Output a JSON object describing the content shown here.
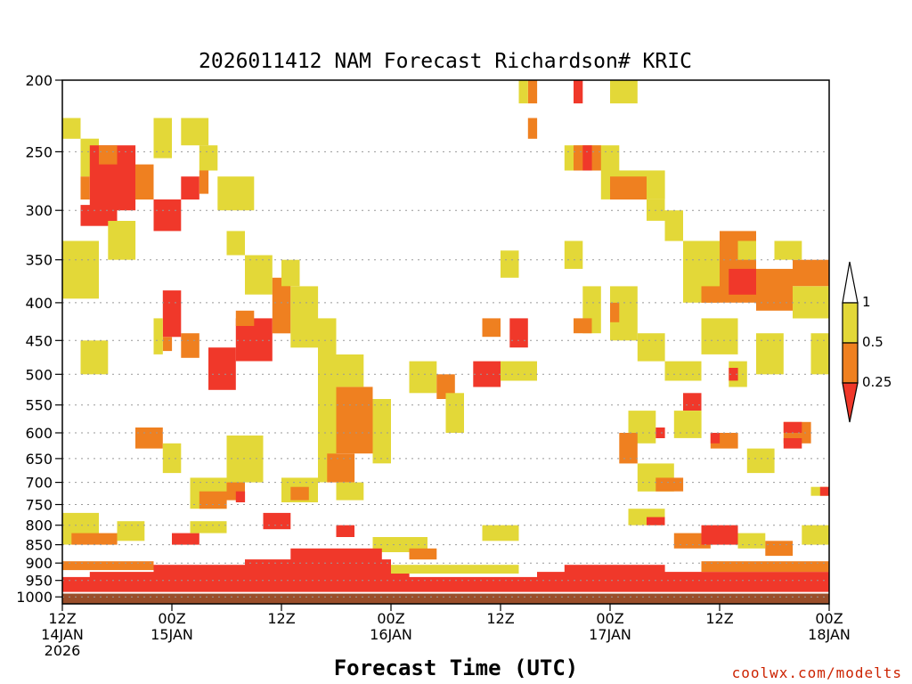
{
  "chart_data": {
    "type": "heatmap",
    "title": "2026011412 NAM Forecast Richardson# KRIC",
    "xlabel": "Forecast Time (UTC)",
    "ylabel": "",
    "credit": "coolwx.com/modelts",
    "x_range_hours": [
      0,
      84
    ],
    "y_range_hpa": [
      200,
      1000
    ],
    "y_ticks": [
      "200",
      "250",
      "300",
      "350",
      "400",
      "450",
      "500",
      "550",
      "600",
      "650",
      "700",
      "750",
      "800",
      "850",
      "900",
      "950",
      "1000"
    ],
    "x_ticks": [
      {
        "line1": "12Z",
        "line2": "14JAN",
        "line3": "2026",
        "hour": 0
      },
      {
        "line1": "00Z",
        "line2": "15JAN",
        "line3": "",
        "hour": 12
      },
      {
        "line1": "12Z",
        "line2": "",
        "line3": "",
        "hour": 24
      },
      {
        "line1": "00Z",
        "line2": "16JAN",
        "line3": "",
        "hour": 36
      },
      {
        "line1": "12Z",
        "line2": "",
        "line3": "",
        "hour": 48
      },
      {
        "line1": "00Z",
        "line2": "17JAN",
        "line3": "",
        "hour": 60
      },
      {
        "line1": "12Z",
        "line2": "",
        "line3": "",
        "hour": 72
      },
      {
        "line1": "00Z",
        "line2": "18JAN",
        "line3": "",
        "hour": 84
      }
    ],
    "legend": {
      "levels": [
        "1",
        "0.5",
        "0.25"
      ],
      "bins": [
        {
          "label": ">1",
          "color": "#ffffff"
        },
        {
          "label": "0.5-1",
          "color": "#e3d838"
        },
        {
          "label": "0.25-0.5",
          "color": "#ef8020"
        },
        {
          "label": "<0.25",
          "color": "#f0382a"
        }
      ]
    },
    "colors": {
      "yellow": "#e3d838",
      "orange": "#ef8020",
      "red": "#f0382a",
      "ground": "#9a4e2a",
      "grid": "#999999"
    },
    "cells": [
      {
        "h0": 0,
        "h1": 2,
        "p0": 225,
        "p1": 240,
        "bin": "0.5-1"
      },
      {
        "h0": 2,
        "h1": 4,
        "p0": 240,
        "p1": 270,
        "bin": "0.5-1"
      },
      {
        "h0": 2,
        "h1": 3,
        "p0": 270,
        "p1": 290,
        "bin": "0.25-0.5"
      },
      {
        "h0": 3,
        "h1": 8,
        "p0": 245,
        "p1": 300,
        "bin": "<0.25"
      },
      {
        "h0": 4,
        "h1": 6,
        "p0": 245,
        "p1": 260,
        "bin": "0.25-0.5"
      },
      {
        "h0": 2,
        "h1": 6,
        "p0": 295,
        "p1": 315,
        "bin": "<0.25"
      },
      {
        "h0": 8,
        "h1": 10,
        "p0": 260,
        "p1": 290,
        "bin": "0.25-0.5"
      },
      {
        "h0": 10,
        "h1": 13,
        "p0": 290,
        "p1": 320,
        "bin": "<0.25"
      },
      {
        "h0": 10,
        "h1": 12,
        "p0": 225,
        "p1": 255,
        "bin": "0.5-1"
      },
      {
        "h0": 13,
        "h1": 16,
        "p0": 225,
        "p1": 245,
        "bin": "0.5-1"
      },
      {
        "h0": 13,
        "h1": 15,
        "p0": 270,
        "p1": 290,
        "bin": "<0.25"
      },
      {
        "h0": 15,
        "h1": 17,
        "p0": 245,
        "p1": 265,
        "bin": "0.5-1"
      },
      {
        "h0": 15,
        "h1": 16,
        "p0": 265,
        "p1": 285,
        "bin": "0.25-0.5"
      },
      {
        "h0": 0,
        "h1": 4,
        "p0": 330,
        "p1": 395,
        "bin": "0.5-1"
      },
      {
        "h0": 5,
        "h1": 8,
        "p0": 310,
        "p1": 350,
        "bin": "0.5-1"
      },
      {
        "h0": 17,
        "h1": 21,
        "p0": 270,
        "p1": 300,
        "bin": "0.5-1"
      },
      {
        "h0": 18,
        "h1": 20,
        "p0": 320,
        "p1": 345,
        "bin": "0.5-1"
      },
      {
        "h0": 20,
        "h1": 23,
        "p0": 345,
        "p1": 390,
        "bin": "0.5-1"
      },
      {
        "h0": 11,
        "h1": 13,
        "p0": 385,
        "p1": 445,
        "bin": "<0.25"
      },
      {
        "h0": 11,
        "h1": 12,
        "p0": 445,
        "p1": 465,
        "bin": "0.25-0.5"
      },
      {
        "h0": 13,
        "h1": 15,
        "p0": 440,
        "p1": 475,
        "bin": "0.25-0.5"
      },
      {
        "h0": 10,
        "h1": 11,
        "p0": 420,
        "p1": 470,
        "bin": "0.5-1"
      },
      {
        "h0": 16,
        "h1": 19,
        "p0": 460,
        "p1": 525,
        "bin": "<0.25"
      },
      {
        "h0": 19,
        "h1": 23,
        "p0": 420,
        "p1": 480,
        "bin": "<0.25"
      },
      {
        "h0": 19,
        "h1": 21,
        "p0": 410,
        "p1": 430,
        "bin": "0.25-0.5"
      },
      {
        "h0": 23,
        "h1": 25,
        "p0": 370,
        "p1": 440,
        "bin": "0.25-0.5"
      },
      {
        "h0": 24,
        "h1": 26,
        "p0": 350,
        "p1": 380,
        "bin": "0.5-1"
      },
      {
        "h0": 25,
        "h1": 28,
        "p0": 380,
        "p1": 460,
        "bin": "0.5-1"
      },
      {
        "h0": 28,
        "h1": 30,
        "p0": 420,
        "p1": 700,
        "bin": "0.5-1"
      },
      {
        "h0": 30,
        "h1": 34,
        "p0": 520,
        "p1": 640,
        "bin": "0.25-0.5"
      },
      {
        "h0": 29,
        "h1": 32,
        "p0": 640,
        "p1": 700,
        "bin": "0.25-0.5"
      },
      {
        "h0": 34,
        "h1": 36,
        "p0": 540,
        "p1": 660,
        "bin": "0.5-1"
      },
      {
        "h0": 30,
        "h1": 33,
        "p0": 470,
        "p1": 520,
        "bin": "0.5-1"
      },
      {
        "h0": 2,
        "h1": 5,
        "p0": 450,
        "p1": 500,
        "bin": "0.5-1"
      },
      {
        "h0": 8,
        "h1": 11,
        "p0": 590,
        "p1": 630,
        "bin": "0.25-0.5"
      },
      {
        "h0": 11,
        "h1": 13,
        "p0": 620,
        "p1": 680,
        "bin": "0.5-1"
      },
      {
        "h0": 14,
        "h1": 18,
        "p0": 690,
        "p1": 760,
        "bin": "0.5-1"
      },
      {
        "h0": 15,
        "h1": 18,
        "p0": 720,
        "p1": 760,
        "bin": "0.25-0.5"
      },
      {
        "h0": 18,
        "h1": 20,
        "p0": 690,
        "p1": 740,
        "bin": "0.25-0.5"
      },
      {
        "h0": 19,
        "h1": 20,
        "p0": 720,
        "p1": 745,
        "bin": "<0.25"
      },
      {
        "h0": 18,
        "h1": 22,
        "p0": 605,
        "p1": 700,
        "bin": "0.5-1"
      },
      {
        "h0": 24,
        "h1": 28,
        "p0": 690,
        "p1": 745,
        "bin": "0.5-1"
      },
      {
        "h0": 25,
        "h1": 27,
        "p0": 710,
        "p1": 740,
        "bin": "0.25-0.5"
      },
      {
        "h0": 30,
        "h1": 33,
        "p0": 700,
        "p1": 740,
        "bin": "0.5-1"
      },
      {
        "h0": 38,
        "h1": 41,
        "p0": 480,
        "p1": 530,
        "bin": "0.5-1"
      },
      {
        "h0": 41,
        "h1": 43,
        "p0": 500,
        "p1": 540,
        "bin": "0.25-0.5"
      },
      {
        "h0": 42,
        "h1": 44,
        "p0": 530,
        "p1": 600,
        "bin": "0.5-1"
      },
      {
        "h0": 45,
        "h1": 48,
        "p0": 480,
        "p1": 520,
        "bin": "<0.25"
      },
      {
        "h0": 48,
        "h1": 52,
        "p0": 480,
        "p1": 510,
        "bin": "0.5-1"
      },
      {
        "h0": 49,
        "h1": 51,
        "p0": 420,
        "p1": 460,
        "bin": "<0.25"
      },
      {
        "h0": 46,
        "h1": 48,
        "p0": 420,
        "p1": 445,
        "bin": "0.25-0.5"
      },
      {
        "h0": 48,
        "h1": 50,
        "p0": 340,
        "p1": 370,
        "bin": "0.5-1"
      },
      {
        "h0": 51,
        "h1": 52,
        "p0": 200,
        "p1": 215,
        "bin": "0.25-0.5"
      },
      {
        "h0": 50,
        "h1": 51,
        "p0": 200,
        "p1": 215,
        "bin": "0.5-1"
      },
      {
        "h0": 51,
        "h1": 52,
        "p0": 225,
        "p1": 240,
        "bin": "0.25-0.5"
      },
      {
        "h0": 56,
        "h1": 57,
        "p0": 200,
        "p1": 215,
        "bin": "<0.25"
      },
      {
        "h0": 60,
        "h1": 63,
        "p0": 200,
        "p1": 215,
        "bin": "0.5-1"
      },
      {
        "h0": 55,
        "h1": 61,
        "p0": 245,
        "p1": 265,
        "bin": "0.5-1"
      },
      {
        "h0": 56,
        "h1": 59,
        "p0": 245,
        "p1": 265,
        "bin": "0.25-0.5"
      },
      {
        "h0": 57,
        "h1": 58,
        "p0": 245,
        "p1": 265,
        "bin": "<0.25"
      },
      {
        "h0": 59,
        "h1": 66,
        "p0": 265,
        "p1": 290,
        "bin": "0.5-1"
      },
      {
        "h0": 60,
        "h1": 64,
        "p0": 270,
        "p1": 290,
        "bin": "0.25-0.5"
      },
      {
        "h0": 64,
        "h1": 66,
        "p0": 290,
        "p1": 310,
        "bin": "0.5-1"
      },
      {
        "h0": 66,
        "h1": 68,
        "p0": 300,
        "p1": 330,
        "bin": "0.5-1"
      },
      {
        "h0": 55,
        "h1": 57,
        "p0": 330,
        "p1": 360,
        "bin": "0.5-1"
      },
      {
        "h0": 57,
        "h1": 59,
        "p0": 380,
        "p1": 440,
        "bin": "0.5-1"
      },
      {
        "h0": 56,
        "h1": 58,
        "p0": 420,
        "p1": 440,
        "bin": "0.25-0.5"
      },
      {
        "h0": 60,
        "h1": 63,
        "p0": 380,
        "p1": 450,
        "bin": "0.5-1"
      },
      {
        "h0": 60,
        "h1": 61,
        "p0": 400,
        "p1": 425,
        "bin": "0.25-0.5"
      },
      {
        "h0": 63,
        "h1": 66,
        "p0": 440,
        "p1": 480,
        "bin": "0.5-1"
      },
      {
        "h0": 66,
        "h1": 70,
        "p0": 480,
        "p1": 510,
        "bin": "0.5-1"
      },
      {
        "h0": 70,
        "h1": 74,
        "p0": 420,
        "p1": 470,
        "bin": "0.5-1"
      },
      {
        "h0": 68,
        "h1": 72,
        "p0": 330,
        "p1": 400,
        "bin": "0.5-1"
      },
      {
        "h0": 70,
        "h1": 72,
        "p0": 380,
        "p1": 400,
        "bin": "0.25-0.5"
      },
      {
        "h0": 72,
        "h1": 76,
        "p0": 320,
        "p1": 400,
        "bin": "0.25-0.5"
      },
      {
        "h0": 73,
        "h1": 76,
        "p0": 360,
        "p1": 390,
        "bin": "<0.25"
      },
      {
        "h0": 74,
        "h1": 76,
        "p0": 330,
        "p1": 350,
        "bin": "0.5-1"
      },
      {
        "h0": 76,
        "h1": 80,
        "p0": 360,
        "p1": 410,
        "bin": "0.25-0.5"
      },
      {
        "h0": 80,
        "h1": 84,
        "p0": 350,
        "p1": 380,
        "bin": "0.25-0.5"
      },
      {
        "h0": 78,
        "h1": 81,
        "p0": 330,
        "p1": 350,
        "bin": "0.5-1"
      },
      {
        "h0": 80,
        "h1": 84,
        "p0": 380,
        "p1": 420,
        "bin": "0.5-1"
      },
      {
        "h0": 82,
        "h1": 84,
        "p0": 440,
        "p1": 500,
        "bin": "0.5-1"
      },
      {
        "h0": 76,
        "h1": 79,
        "p0": 440,
        "p1": 500,
        "bin": "0.5-1"
      },
      {
        "h0": 73,
        "h1": 75,
        "p0": 480,
        "p1": 520,
        "bin": "0.5-1"
      },
      {
        "h0": 73,
        "h1": 74,
        "p0": 490,
        "p1": 510,
        "bin": "<0.25"
      },
      {
        "h0": 68,
        "h1": 70,
        "p0": 530,
        "p1": 560,
        "bin": "<0.25"
      },
      {
        "h0": 67,
        "h1": 70,
        "p0": 560,
        "p1": 610,
        "bin": "0.5-1"
      },
      {
        "h0": 62,
        "h1": 65,
        "p0": 560,
        "p1": 620,
        "bin": "0.5-1"
      },
      {
        "h0": 61,
        "h1": 63,
        "p0": 600,
        "p1": 660,
        "bin": "0.25-0.5"
      },
      {
        "h0": 63,
        "h1": 67,
        "p0": 660,
        "p1": 720,
        "bin": "0.5-1"
      },
      {
        "h0": 65,
        "h1": 68,
        "p0": 690,
        "p1": 720,
        "bin": "0.25-0.5"
      },
      {
        "h0": 65,
        "h1": 66,
        "p0": 590,
        "p1": 610,
        "bin": "<0.25"
      },
      {
        "h0": 71,
        "h1": 74,
        "p0": 600,
        "p1": 630,
        "bin": "0.25-0.5"
      },
      {
        "h0": 71,
        "h1": 72,
        "p0": 600,
        "p1": 620,
        "bin": "<0.25"
      },
      {
        "h0": 75,
        "h1": 78,
        "p0": 630,
        "p1": 680,
        "bin": "0.5-1"
      },
      {
        "h0": 79,
        "h1": 82,
        "p0": 580,
        "p1": 620,
        "bin": "0.25-0.5"
      },
      {
        "h0": 79,
        "h1": 81,
        "p0": 580,
        "p1": 600,
        "bin": "<0.25"
      },
      {
        "h0": 79,
        "h1": 81,
        "p0": 610,
        "p1": 630,
        "bin": "<0.25"
      },
      {
        "h0": 82,
        "h1": 84,
        "p0": 710,
        "p1": 730,
        "bin": "0.5-1"
      },
      {
        "h0": 83,
        "h1": 84,
        "p0": 710,
        "p1": 730,
        "bin": "<0.25"
      },
      {
        "h0": 0,
        "h1": 4,
        "p0": 770,
        "p1": 850,
        "bin": "0.5-1"
      },
      {
        "h0": 1,
        "h1": 6,
        "p0": 820,
        "p1": 850,
        "bin": "0.25-0.5"
      },
      {
        "h0": 6,
        "h1": 9,
        "p0": 790,
        "p1": 840,
        "bin": "0.5-1"
      },
      {
        "h0": 12,
        "h1": 15,
        "p0": 820,
        "p1": 850,
        "bin": "<0.25"
      },
      {
        "h0": 14,
        "h1": 18,
        "p0": 790,
        "p1": 820,
        "bin": "0.5-1"
      },
      {
        "h0": 22,
        "h1": 25,
        "p0": 770,
        "p1": 810,
        "bin": "<0.25"
      },
      {
        "h0": 30,
        "h1": 32,
        "p0": 800,
        "p1": 830,
        "bin": "<0.25"
      },
      {
        "h0": 34,
        "h1": 40,
        "p0": 830,
        "p1": 870,
        "bin": "0.5-1"
      },
      {
        "h0": 38,
        "h1": 41,
        "p0": 860,
        "p1": 890,
        "bin": "0.25-0.5"
      },
      {
        "h0": 46,
        "h1": 50,
        "p0": 800,
        "p1": 840,
        "bin": "0.5-1"
      },
      {
        "h0": 62,
        "h1": 66,
        "p0": 760,
        "p1": 800,
        "bin": "0.5-1"
      },
      {
        "h0": 64,
        "h1": 66,
        "p0": 780,
        "p1": 800,
        "bin": "<0.25"
      },
      {
        "h0": 67,
        "h1": 71,
        "p0": 820,
        "p1": 860,
        "bin": "0.25-0.5"
      },
      {
        "h0": 70,
        "h1": 74,
        "p0": 800,
        "p1": 850,
        "bin": "<0.25"
      },
      {
        "h0": 74,
        "h1": 77,
        "p0": 820,
        "p1": 860,
        "bin": "0.5-1"
      },
      {
        "h0": 77,
        "h1": 80,
        "p0": 840,
        "p1": 880,
        "bin": "0.25-0.5"
      },
      {
        "h0": 81,
        "h1": 84,
        "p0": 800,
        "p1": 850,
        "bin": "0.5-1"
      },
      {
        "h0": 0,
        "h1": 84,
        "p0": 940,
        "p1": 985,
        "bin": "<0.25"
      },
      {
        "h0": 3,
        "h1": 38,
        "p0": 925,
        "p1": 945,
        "bin": "<0.25"
      },
      {
        "h0": 20,
        "h1": 36,
        "p0": 890,
        "p1": 930,
        "bin": "<0.25"
      },
      {
        "h0": 25,
        "h1": 35,
        "p0": 860,
        "p1": 895,
        "bin": "<0.25"
      },
      {
        "h0": 10,
        "h1": 20,
        "p0": 905,
        "p1": 930,
        "bin": "<0.25"
      },
      {
        "h0": 52,
        "h1": 84,
        "p0": 925,
        "p1": 945,
        "bin": "<0.25"
      },
      {
        "h0": 55,
        "h1": 66,
        "p0": 905,
        "p1": 930,
        "bin": "<0.25"
      },
      {
        "h0": 70,
        "h1": 84,
        "p0": 895,
        "p1": 925,
        "bin": "0.25-0.5"
      },
      {
        "h0": 0,
        "h1": 10,
        "p0": 895,
        "p1": 920,
        "bin": "0.25-0.5"
      },
      {
        "h0": 36,
        "h1": 50,
        "p0": 905,
        "p1": 930,
        "bin": "0.5-1"
      }
    ]
  }
}
